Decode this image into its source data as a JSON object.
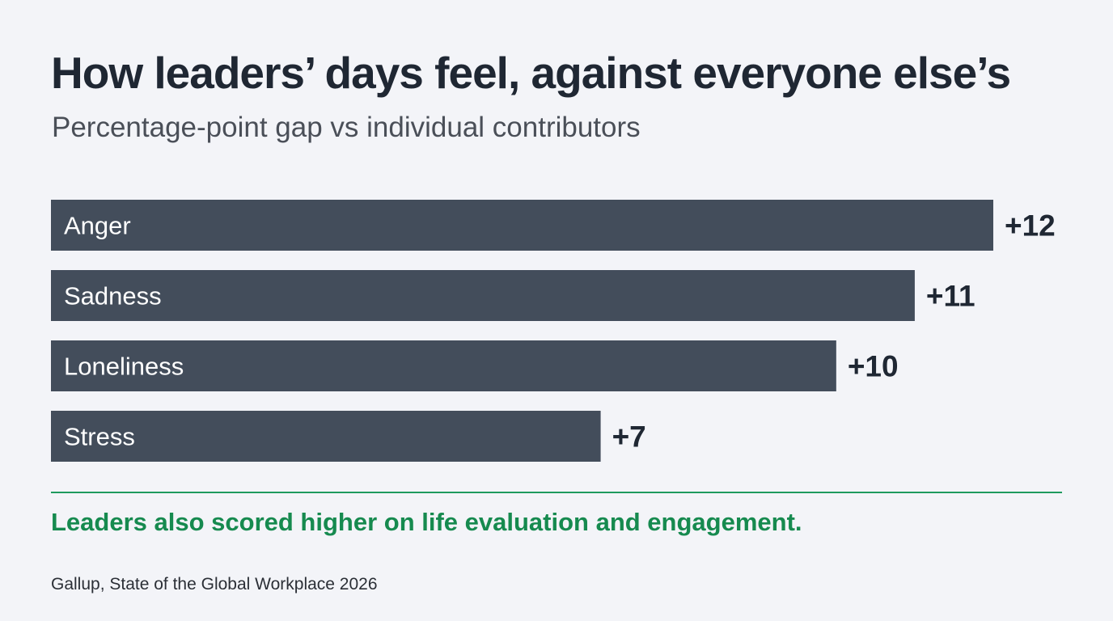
{
  "chart_data": {
    "type": "bar",
    "orientation": "horizontal",
    "title": "How leaders’ days feel, against everyone else’s",
    "subtitle": "Percentage-point gap vs individual contributors",
    "categories": [
      "Anger",
      "Sadness",
      "Loneliness",
      "Stress"
    ],
    "values": [
      12,
      11,
      10,
      7
    ],
    "value_labels": [
      "+12",
      "+11",
      "+10",
      "+7"
    ],
    "xlim": [
      0,
      12
    ],
    "grid": false,
    "legend": "none",
    "bar_color": "#434d5b",
    "label_color": "#ffffff",
    "annotation": "Leaders also scored higher on life evaluation and engagement.",
    "annotation_color": "#168a4f",
    "source": "Gallup, State of the Global Workplace 2026"
  }
}
